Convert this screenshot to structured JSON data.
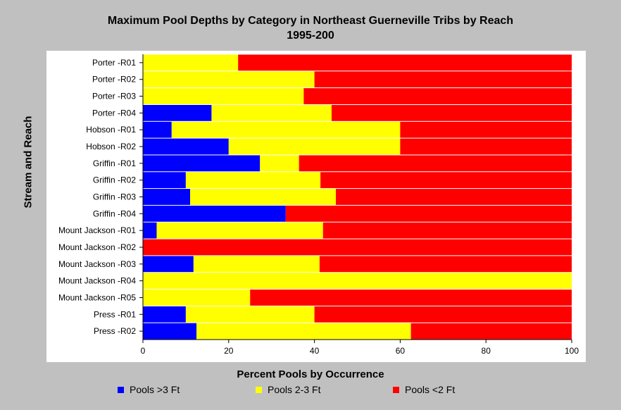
{
  "chart_data": {
    "type": "bar",
    "orientation": "horizontal",
    "stacked": true,
    "title": "Maximum Pool Depths by Category in Northeast Guerneville Tribs by Reach",
    "subtitle": "1995-200",
    "xlabel": "Percent Pools by Occurrence",
    "ylabel": "Stream and Reach",
    "xlim": [
      0,
      100
    ],
    "xticks": [
      0,
      20,
      40,
      60,
      80,
      100
    ],
    "grid": false,
    "legend_position": "bottom",
    "categories": [
      "Porter -R01",
      "Porter -R02",
      "Porter -R03",
      "Porter -R04",
      "Hobson -R01",
      "Hobson -R02",
      "Griffin -R01",
      "Griffin -R02",
      "Griffin -R03",
      "Griffin -R04",
      "Mount Jackson -R01",
      "Mount Jackson -R02",
      "Mount Jackson -R03",
      "Mount Jackson -R04",
      "Mount Jackson -R05",
      "Press -R01",
      "Press -R02"
    ],
    "series": [
      {
        "name": "Pools >3 Ft",
        "color": "#0000ff",
        "values": [
          0,
          0,
          0,
          16,
          6.7,
          20,
          27.3,
          10,
          11,
          33.3,
          3.2,
          0,
          11.8,
          0,
          0,
          10,
          12.5
        ]
      },
      {
        "name": "Pools 2-3 Ft",
        "color": "#ffff00",
        "values": [
          22.2,
          40,
          37.5,
          28,
          53.3,
          40,
          9.1,
          31.4,
          34,
          0,
          38.8,
          0,
          29.4,
          100,
          25,
          30,
          50
        ]
      },
      {
        "name": "Pools <2 Ft",
        "color": "#ff0000",
        "values": [
          77.8,
          60,
          62.5,
          56,
          40,
          40,
          63.6,
          58.6,
          55,
          66.7,
          58,
          100,
          58.8,
          0,
          75,
          60,
          37.5
        ]
      }
    ]
  }
}
